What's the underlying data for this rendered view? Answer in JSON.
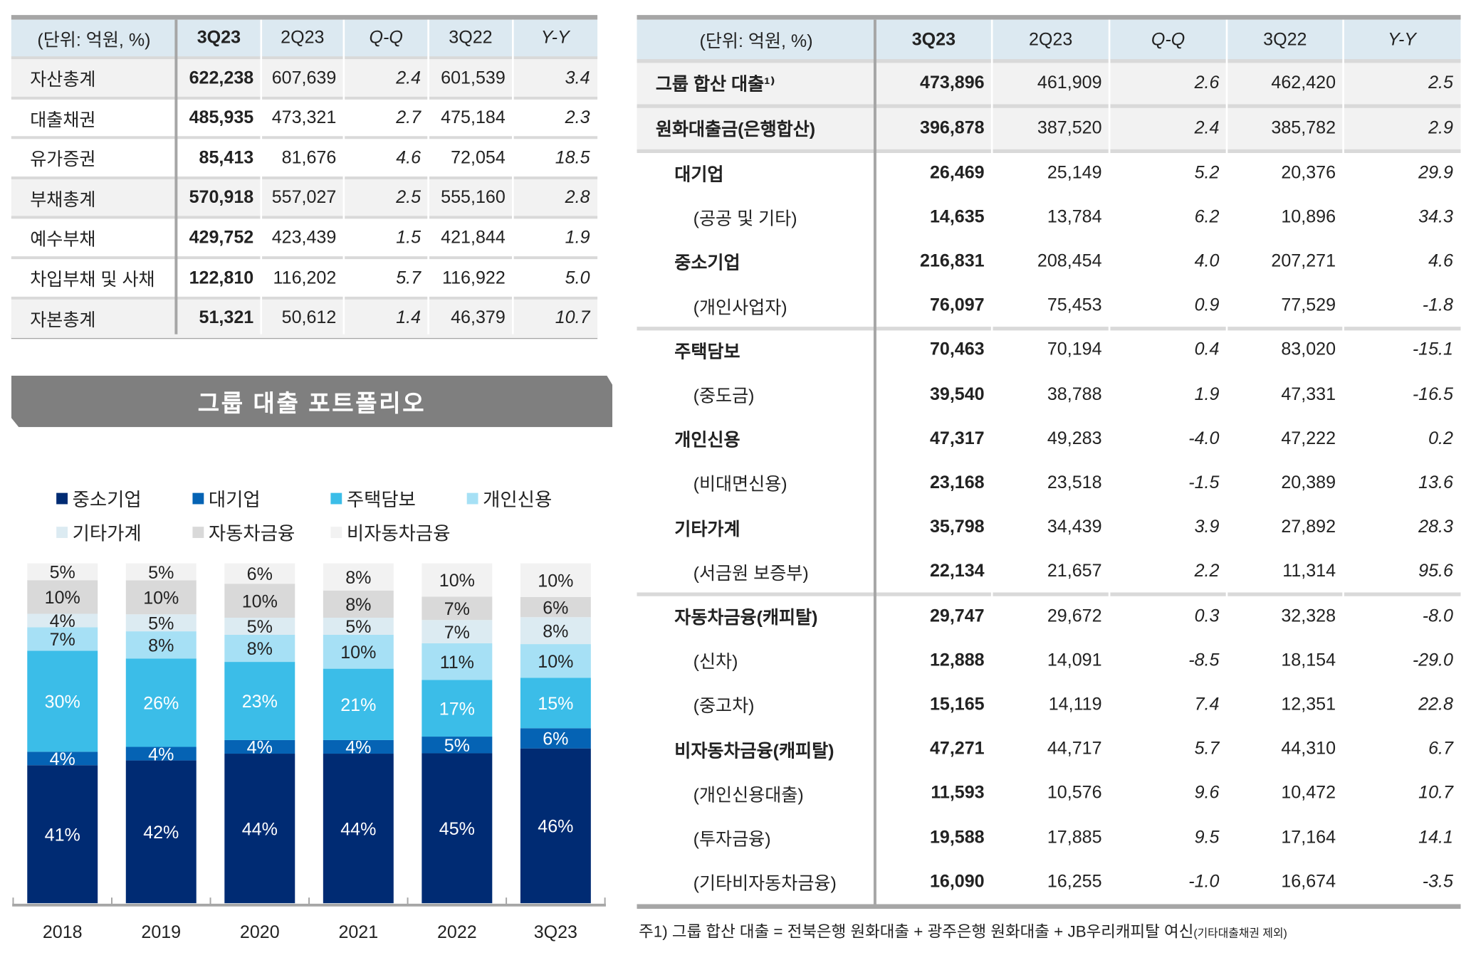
{
  "left_table": {
    "headers": [
      "(단위: 억원, %)",
      "3Q23",
      "2Q23",
      "Q-Q",
      "3Q22",
      "Y-Y"
    ],
    "rows": [
      {
        "label": "자산총계",
        "values": [
          "622,238",
          "607,639",
          "2.4",
          "601,539",
          "3.4"
        ],
        "shaded": true
      },
      {
        "label": "대출채권",
        "values": [
          "485,935",
          "473,321",
          "2.7",
          "475,184",
          "2.3"
        ],
        "shaded": false
      },
      {
        "label": "유가증권",
        "values": [
          "85,413",
          "81,676",
          "4.6",
          "72,054",
          "18.5"
        ],
        "shaded": false
      },
      {
        "label": "부채총계",
        "values": [
          "570,918",
          "557,027",
          "2.5",
          "555,160",
          "2.8"
        ],
        "shaded": true
      },
      {
        "label": "예수부채",
        "values": [
          "429,752",
          "423,439",
          "1.5",
          "421,844",
          "1.9"
        ],
        "shaded": false
      },
      {
        "label": "차입부채 및 사채",
        "values": [
          "122,810",
          "116,202",
          "5.7",
          "116,922",
          "5.0"
        ],
        "shaded": false
      },
      {
        "label": "자본총계",
        "values": [
          "51,321",
          "50,612",
          "1.4",
          "46,379",
          "10.7"
        ],
        "shaded": true
      }
    ]
  },
  "banner": {
    "title": "그룹 대출 포트폴리오"
  },
  "right_table": {
    "headers": [
      "(단위: 억원, %)",
      "3Q23",
      "2Q23",
      "Q-Q",
      "3Q22",
      "Y-Y"
    ],
    "rows": [
      {
        "label": "그룹 합산 대출¹⁾",
        "level": 0,
        "values": [
          "473,896",
          "461,909",
          "2.6",
          "462,420",
          "2.5"
        ]
      },
      {
        "label": "원화대출금(은행합산)",
        "level": 0,
        "values": [
          "396,878",
          "387,520",
          "2.4",
          "385,782",
          "2.9"
        ]
      },
      {
        "label": "대기업",
        "level": 1,
        "values": [
          "26,469",
          "25,149",
          "5.2",
          "20,376",
          "29.9"
        ]
      },
      {
        "label": "(공공 및 기타)",
        "level": 2,
        "values": [
          "14,635",
          "13,784",
          "6.2",
          "10,896",
          "34.3"
        ]
      },
      {
        "label": "중소기업",
        "level": 1,
        "values": [
          "216,831",
          "208,454",
          "4.0",
          "207,271",
          "4.6"
        ]
      },
      {
        "label": "(개인사업자)",
        "level": 2,
        "values": [
          "76,097",
          "75,453",
          "0.9",
          "77,529",
          "-1.8"
        ]
      },
      {
        "label": "주택담보",
        "level": 1,
        "values": [
          "70,463",
          "70,194",
          "0.4",
          "83,020",
          "-15.1"
        ]
      },
      {
        "label": "(중도금)",
        "level": 2,
        "values": [
          "39,540",
          "38,788",
          "1.9",
          "47,331",
          "-16.5"
        ]
      },
      {
        "label": "개인신용",
        "level": 1,
        "values": [
          "47,317",
          "49,283",
          "-4.0",
          "47,222",
          "0.2"
        ]
      },
      {
        "label": "(비대면신용)",
        "level": 2,
        "values": [
          "23,168",
          "23,518",
          "-1.5",
          "20,389",
          "13.6"
        ]
      },
      {
        "label": "기타가계",
        "level": 1,
        "values": [
          "35,798",
          "34,439",
          "3.9",
          "27,892",
          "28.3"
        ]
      },
      {
        "label": "(서금원 보증부)",
        "level": 2,
        "values": [
          "22,134",
          "21,657",
          "2.2",
          "11,314",
          "95.6"
        ]
      },
      {
        "label": "자동차금융(캐피탈)",
        "level": 1,
        "values": [
          "29,747",
          "29,672",
          "0.3",
          "32,328",
          "-8.0"
        ]
      },
      {
        "label": "(신차)",
        "level": 2,
        "values": [
          "12,888",
          "14,091",
          "-8.5",
          "18,154",
          "-29.0"
        ]
      },
      {
        "label": "(중고차)",
        "level": 2,
        "values": [
          "15,165",
          "14,119",
          "7.4",
          "12,351",
          "22.8"
        ]
      },
      {
        "label": "비자동차금융(캐피탈)",
        "level": 1,
        "values": [
          "47,271",
          "44,717",
          "5.7",
          "44,310",
          "6.7"
        ]
      },
      {
        "label": "(개인신용대출)",
        "level": 2,
        "values": [
          "11,593",
          "10,576",
          "9.6",
          "10,472",
          "10.7"
        ]
      },
      {
        "label": "(투자금융)",
        "level": 2,
        "values": [
          "19,588",
          "17,885",
          "9.5",
          "17,164",
          "14.1"
        ]
      },
      {
        "label": "(기타비자동차금융)",
        "level": 2,
        "values": [
          "16,090",
          "16,255",
          "-1.0",
          "16,674",
          "-3.5"
        ]
      }
    ]
  },
  "footnote": {
    "main": "주1) 그룹 합산 대출 = 전북은행 원화대출 + 광주은행 원화대출 + JB우리캐피탈 여신",
    "small": "(기타대출채권 제외)"
  },
  "chart_data": {
    "type": "bar",
    "stacked": true,
    "categories": [
      "2018",
      "2019",
      "2020",
      "2021",
      "2022",
      "3Q23"
    ],
    "legend_position": "top-left",
    "grid": false,
    "series": [
      {
        "name": "중소기업",
        "color": "#002b73",
        "values": [
          41,
          42,
          44,
          44,
          45,
          46
        ]
      },
      {
        "name": "대기업",
        "color": "#0563b4",
        "values": [
          4,
          4,
          4,
          4,
          5,
          6
        ]
      },
      {
        "name": "주택담보",
        "color": "#3bbde8",
        "values": [
          30,
          26,
          23,
          21,
          17,
          15
        ]
      },
      {
        "name": "개인신용",
        "color": "#a6e0f5",
        "values": [
          7,
          8,
          8,
          10,
          11,
          10
        ]
      },
      {
        "name": "기타가계",
        "color": "#dcebf2",
        "values": [
          4,
          5,
          5,
          5,
          7,
          8
        ]
      },
      {
        "name": "자동차금융",
        "color": "#d9d9d9",
        "values": [
          10,
          10,
          10,
          8,
          7,
          6
        ]
      },
      {
        "name": "비자동차금융",
        "color": "#f2f2f2",
        "values": [
          5,
          5,
          6,
          8,
          10,
          10
        ]
      }
    ],
    "unit": "%"
  }
}
